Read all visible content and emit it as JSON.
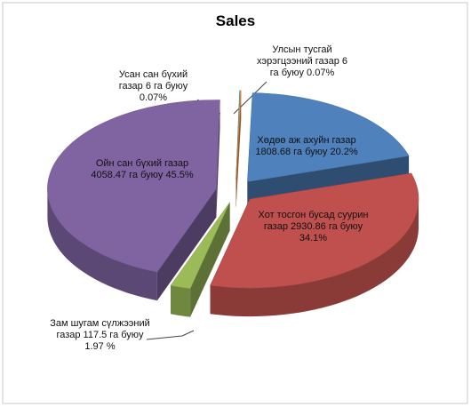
{
  "chart_data": {
    "type": "pie",
    "title": "Sales",
    "categories": [
      "Хөдөө аж ахуйн газар 1808.68 га буюу 20.2%",
      "Хот тосгон бусад суурин газар 2930.86 га буюу 34.1%",
      "Зам шугам сүлжээний газар 117.5 га буюу 1.97 %",
      "Ойн сан бүхий газар 4058.47 га буюу 45.5%",
      "Усан сан бүхий газар 6 га буюу 0.07%",
      "Улсын тусгай хэрэгцээний газар 6 га буюу 0.07%"
    ],
    "values": [
      20.2,
      34.1,
      1.97,
      45.5,
      0.07,
      0.07
    ],
    "colors": [
      "#4f81bd",
      "#c0504d",
      "#9bbb59",
      "#8064a2",
      "#4bacc6",
      "#f79646"
    ]
  }
}
